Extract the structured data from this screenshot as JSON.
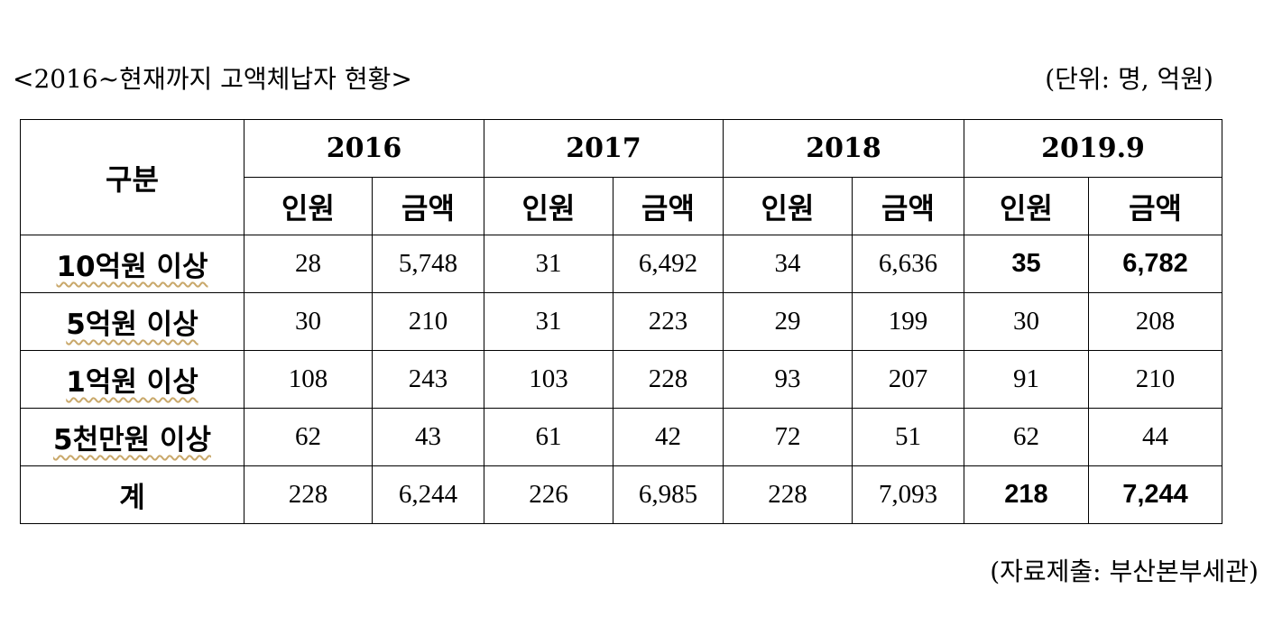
{
  "caption": "<2016~현재까지 고액체납자 현황>",
  "unit_note": "(단위: 명, 억원)",
  "table": {
    "corner_label": "구분",
    "years": [
      "2016",
      "2017",
      "2018",
      "2019.9"
    ],
    "sub_headers": [
      "인원",
      "금액",
      "인원",
      "금액",
      "인원",
      "금액",
      "인원",
      "금액"
    ],
    "rows": [
      {
        "label": "10억원 이상",
        "cells": [
          "28",
          "5,748",
          "31",
          "6,492",
          "34",
          "6,636",
          "35",
          "6,782"
        ]
      },
      {
        "label": "5억원 이상",
        "cells": [
          "30",
          "210",
          "31",
          "223",
          "29",
          "199",
          "30",
          "208"
        ]
      },
      {
        "label": "1억원 이상",
        "cells": [
          "108",
          "243",
          "103",
          "228",
          "93",
          "207",
          "91",
          "210"
        ]
      },
      {
        "label": "5천만원 이상",
        "cells": [
          "62",
          "43",
          "61",
          "42",
          "72",
          "51",
          "62",
          "44"
        ]
      },
      {
        "label": "계",
        "cells": [
          "228",
          "6,244",
          "226",
          "6,985",
          "228",
          "7,093",
          "218",
          "7,244"
        ]
      }
    ]
  },
  "source_note": "(자료제출: 부산본부세관)"
}
